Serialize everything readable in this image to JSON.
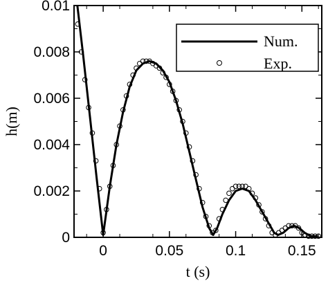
{
  "chart_data": {
    "type": "line",
    "title": "",
    "xlabel": "t (s)",
    "ylabel": "h(m)",
    "xlim": [
      -0.022,
      0.165
    ],
    "ylim": [
      0,
      0.01
    ],
    "grid": false,
    "legend_position": "top-right",
    "x_ticks": [
      0,
      0.05,
      0.1,
      0.15
    ],
    "x_tick_labels": [
      "0",
      "0.05",
      "0.1",
      "0.15"
    ],
    "y_ticks": [
      0,
      0.002,
      0.004,
      0.006,
      0.008,
      0.01
    ],
    "y_tick_labels": [
      "0",
      "0.002",
      "0.004",
      "0.006",
      "0.008",
      "0.01"
    ],
    "series": [
      {
        "name": "Num.",
        "style": "line",
        "color": "#000000",
        "x": [
          -0.0195,
          -0.015,
          -0.01,
          -0.005,
          0,
          0.005,
          0.01,
          0.015,
          0.02,
          0.025,
          0.03,
          0.035,
          0.04,
          0.045,
          0.05,
          0.055,
          0.06,
          0.065,
          0.07,
          0.075,
          0.08,
          0.083,
          0.086,
          0.09,
          0.095,
          0.1,
          0.105,
          0.11,
          0.115,
          0.12,
          0.125,
          0.129,
          0.132,
          0.136,
          0.14,
          0.144,
          0.148,
          0.152,
          0.155,
          0.157,
          0.162
        ],
        "y": [
          0.01,
          0.0078,
          0.0052,
          0.0026,
          0.0001,
          0.0022,
          0.004,
          0.0054,
          0.0065,
          0.0072,
          0.0075,
          0.0076,
          0.0075,
          0.0072,
          0.0067,
          0.0059,
          0.0049,
          0.0037,
          0.0025,
          0.0013,
          0.0004,
          0.0001,
          0.0004,
          0.001,
          0.0016,
          0.002,
          0.0021,
          0.002,
          0.0016,
          0.0011,
          0.0006,
          0.0002,
          0.0001,
          0.0002,
          0.0004,
          0.0005,
          0.0004,
          0.0002,
          0.0001,
          5e-05,
          5e-05
        ]
      },
      {
        "name": "Exp.",
        "style": "scatter",
        "marker": "circle-open",
        "color": "#000000",
        "x": [
          -0.0192,
          -0.0165,
          -0.0138,
          -0.011,
          -0.0082,
          -0.0055,
          -0.0028,
          0,
          0.0025,
          0.005,
          0.0075,
          0.01,
          0.0125,
          0.015,
          0.0175,
          0.02,
          0.0225,
          0.025,
          0.0275,
          0.03,
          0.0325,
          0.035,
          0.0375,
          0.04,
          0.0425,
          0.045,
          0.0475,
          0.05,
          0.0525,
          0.055,
          0.0575,
          0.06,
          0.0625,
          0.065,
          0.0675,
          0.07,
          0.0725,
          0.075,
          0.0775,
          0.08,
          0.0825,
          0.085,
          0.0875,
          0.09,
          0.0925,
          0.095,
          0.0975,
          0.1,
          0.1025,
          0.105,
          0.1075,
          0.11,
          0.1125,
          0.115,
          0.1175,
          0.12,
          0.1225,
          0.125,
          0.1275,
          0.13,
          0.1325,
          0.135,
          0.1375,
          0.14,
          0.1425,
          0.145,
          0.1475,
          0.15,
          0.1525,
          0.155,
          0.1575,
          0.16,
          0.1625
        ],
        "y": [
          0.0092,
          0.008,
          0.0068,
          0.0056,
          0.0045,
          0.0033,
          0.0021,
          0.0002,
          0.0012,
          0.0022,
          0.0031,
          0.004,
          0.0048,
          0.0055,
          0.0061,
          0.0066,
          0.007,
          0.0073,
          0.0075,
          0.0076,
          0.0076,
          0.0076,
          0.0075,
          0.0074,
          0.0073,
          0.0071,
          0.0069,
          0.0066,
          0.0063,
          0.0059,
          0.0055,
          0.005,
          0.0045,
          0.0039,
          0.0033,
          0.0027,
          0.0021,
          0.0015,
          0.0009,
          0.0005,
          0.0002,
          0.0003,
          0.0008,
          0.0012,
          0.0016,
          0.0019,
          0.0021,
          0.0022,
          0.0022,
          0.0022,
          0.0022,
          0.0021,
          0.0019,
          0.0017,
          0.0014,
          0.0011,
          0.0008,
          0.0005,
          0.0002,
          0.0001,
          0.0002,
          0.0003,
          0.0004,
          0.0005,
          0.0005,
          0.0005,
          0.0004,
          0.0002,
          0.0001,
          5e-05,
          5e-05,
          5e-05,
          5e-05
        ]
      }
    ]
  }
}
